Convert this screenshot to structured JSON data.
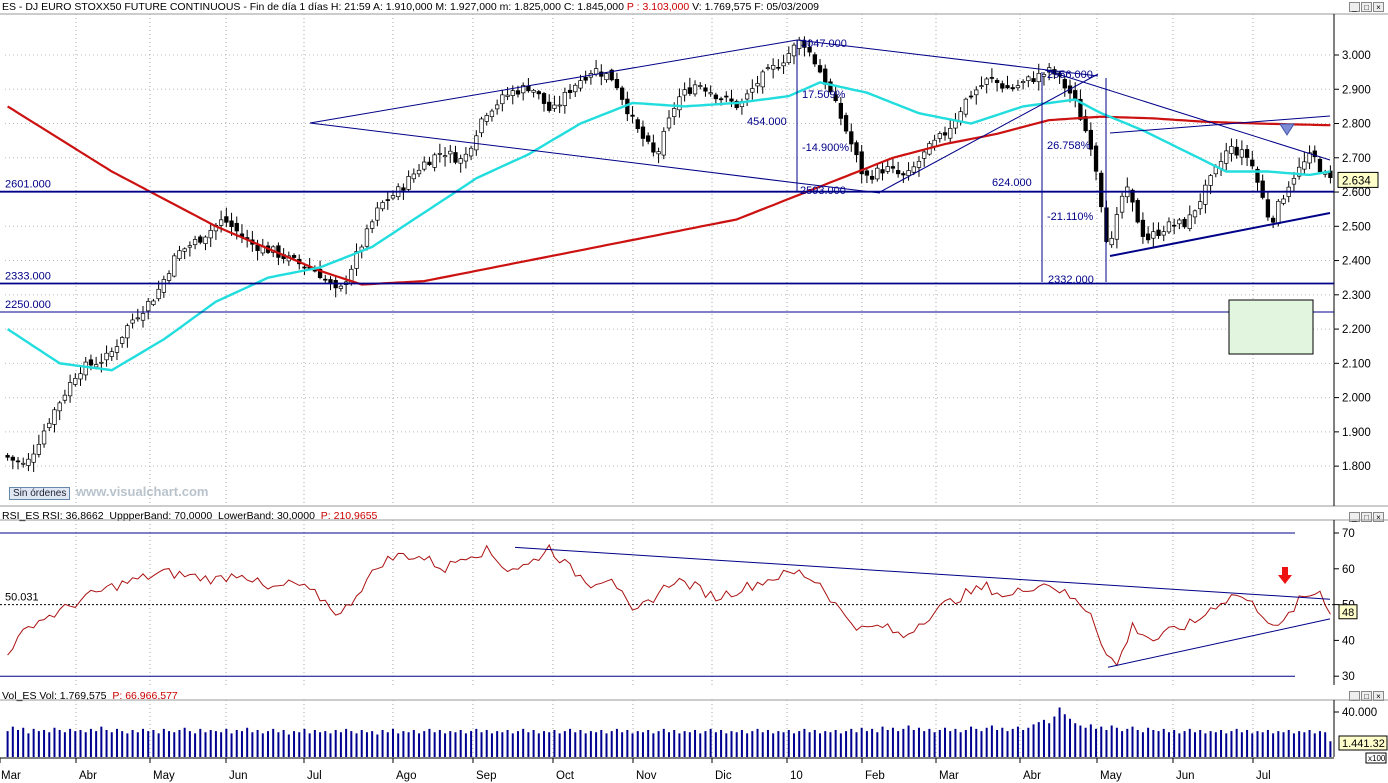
{
  "header": {
    "title": "ES - DJ EURO STOXX50 FUTURE CONTINUOUS - Fin de día 1 días",
    "h_label": "H: 21:59",
    "open_label": "A: 1.910,000",
    "high_label": "M: 1.927,000",
    "low_label": "m: 1.825,000",
    "close_label": "C: 1.845,000",
    "p_label": "P : 3.103,000",
    "volume_label": "V: 1.769,575",
    "date_label": "F: 05/03/2009"
  },
  "window_buttons": [
    "_",
    "□",
    "×"
  ],
  "rsi_header": {
    "rsi_name": "RSI_ES RSI: 36,8662",
    "upper": "UppperBand: 70,0000",
    "lower": "LowerBand: 30,0000",
    "p": "P: 210,9655"
  },
  "vol_header": {
    "name": "Vol_ES Vol: 1.769,575",
    "p": "P: 66.966,577"
  },
  "watermark": "www.visualchart.com",
  "sin_ordenes": "Sin órdenes",
  "colors": {
    "ma_long": "#cc1111",
    "ma_short": "#22dddd",
    "lines": "#000088",
    "rsi": "#aa1111",
    "box_fill": "#e2f6df",
    "price_tag": "#ffffcc"
  },
  "chart_data": [
    {
      "type": "candlestick",
      "title": "ES - DJ EURO STOXX50 FUTURE CONTINUOUS",
      "ylim": [
        1700,
        3100
      ],
      "y_ticks": [
        "3.000",
        "2.900",
        "2.800",
        "2.700",
        "2.600",
        "2.500",
        "2.400",
        "2.300",
        "2.200",
        "2.100",
        "2.000",
        "1.900",
        "1.800"
      ],
      "y_tick_values": [
        3000,
        2900,
        2800,
        2700,
        2600,
        2500,
        2400,
        2300,
        2200,
        2100,
        2000,
        1900,
        1800
      ],
      "x_month_labels": [
        "Mar",
        "Abr",
        "May",
        "Jun",
        "Jul",
        "Ago",
        "Sep",
        "Oct",
        "Nov",
        "Dic",
        "10",
        "Feb",
        "Mar",
        "Abr",
        "May",
        "Jun",
        "Jul"
      ],
      "last_price_label": "2.634",
      "last_price": 2634,
      "price_path": [
        [
          0,
          1830
        ],
        [
          4,
          1800
        ],
        [
          9,
          1950
        ],
        [
          14,
          2080
        ],
        [
          20,
          2120
        ],
        [
          24,
          2220
        ],
        [
          29,
          2300
        ],
        [
          33,
          2420
        ],
        [
          37,
          2460
        ],
        [
          42,
          2520
        ],
        [
          47,
          2450
        ],
        [
          51,
          2430
        ],
        [
          55,
          2400
        ],
        [
          60,
          2370
        ],
        [
          64,
          2300
        ],
        [
          68,
          2430
        ],
        [
          72,
          2560
        ],
        [
          76,
          2610
        ],
        [
          80,
          2680
        ],
        [
          84,
          2720
        ],
        [
          88,
          2690
        ],
        [
          92,
          2830
        ],
        [
          97,
          2890
        ],
        [
          101,
          2910
        ],
        [
          105,
          2830
        ],
        [
          109,
          2910
        ],
        [
          113,
          2960
        ],
        [
          117,
          2930
        ],
        [
          121,
          2790
        ],
        [
          125,
          2700
        ],
        [
          129,
          2870
        ],
        [
          133,
          2920
        ],
        [
          137,
          2880
        ],
        [
          141,
          2850
        ],
        [
          145,
          2930
        ],
        [
          149,
          2980
        ],
        [
          153,
          3047
        ],
        [
          157,
          2940
        ],
        [
          161,
          2800
        ],
        [
          165,
          2640
        ],
        [
          169,
          2670
        ],
        [
          173,
          2640
        ],
        [
          177,
          2720
        ],
        [
          181,
          2780
        ],
        [
          185,
          2880
        ],
        [
          189,
          2930
        ],
        [
          193,
          2900
        ],
        [
          197,
          2930
        ],
        [
          201,
          2955
        ],
        [
          205,
          2880
        ],
        [
          209,
          2720
        ],
        [
          212,
          2420
        ],
        [
          215,
          2620
        ],
        [
          219,
          2460
        ],
        [
          223,
          2500
        ],
        [
          227,
          2510
        ],
        [
          231,
          2620
        ],
        [
          235,
          2730
        ],
        [
          239,
          2700
        ],
        [
          243,
          2510
        ],
        [
          247,
          2640
        ],
        [
          251,
          2710
        ],
        [
          254,
          2634
        ]
      ],
      "ma_long_path": [
        [
          0,
          2850
        ],
        [
          20,
          2660
        ],
        [
          40,
          2500
        ],
        [
          60,
          2370
        ],
        [
          68,
          2330
        ],
        [
          80,
          2340
        ],
        [
          100,
          2400
        ],
        [
          120,
          2460
        ],
        [
          140,
          2520
        ],
        [
          160,
          2640
        ],
        [
          170,
          2700
        ],
        [
          180,
          2740
        ],
        [
          190,
          2770
        ],
        [
          200,
          2810
        ],
        [
          210,
          2820
        ],
        [
          220,
          2815
        ],
        [
          230,
          2805
        ],
        [
          240,
          2800
        ],
        [
          254,
          2795
        ]
      ],
      "ma_short_path": [
        [
          0,
          2200
        ],
        [
          10,
          2100
        ],
        [
          20,
          2080
        ],
        [
          30,
          2170
        ],
        [
          40,
          2280
        ],
        [
          50,
          2350
        ],
        [
          60,
          2380
        ],
        [
          70,
          2440
        ],
        [
          80,
          2540
        ],
        [
          90,
          2640
        ],
        [
          100,
          2710
        ],
        [
          110,
          2800
        ],
        [
          120,
          2860
        ],
        [
          130,
          2850
        ],
        [
          140,
          2860
        ],
        [
          150,
          2880
        ],
        [
          156,
          2920
        ],
        [
          165,
          2890
        ],
        [
          175,
          2830
        ],
        [
          185,
          2800
        ],
        [
          195,
          2850
        ],
        [
          205,
          2870
        ],
        [
          210,
          2830
        ],
        [
          218,
          2780
        ],
        [
          226,
          2720
        ],
        [
          234,
          2660
        ],
        [
          242,
          2660
        ],
        [
          250,
          2650
        ],
        [
          254,
          2660
        ]
      ],
      "h_levels": [
        {
          "label": "2601.000",
          "value": 2601
        },
        {
          "label": "2333.000",
          "value": 2333
        },
        {
          "label": "2250.000",
          "value": 2250
        }
      ],
      "annotations": [
        {
          "text": "3047.000"
        },
        {
          "text": "17.509%"
        },
        {
          "text": "454.000"
        },
        {
          "text": "-14.900%"
        },
        {
          "text": "2593.000"
        },
        {
          "text": "2956.000"
        },
        {
          "text": "26.758%"
        },
        {
          "text": "624.000"
        },
        {
          "text": "-21.110%"
        },
        {
          "text": "2332.000"
        }
      ]
    },
    {
      "type": "line",
      "title": "RSI_ES RSI",
      "ylim": [
        25,
        75
      ],
      "y_ticks": [
        "70",
        "60",
        "50",
        "40",
        "30"
      ],
      "y_tick_values": [
        70,
        60,
        50,
        40,
        30
      ],
      "upper_band": 70,
      "lower_band": 30,
      "level_label": "50.031",
      "level": 50,
      "last_value_label": "48",
      "series": [
        {
          "values": [
            [
              0,
              37
            ],
            [
              5,
              45
            ],
            [
              10,
              48
            ],
            [
              15,
              52
            ],
            [
              20,
              55
            ],
            [
              25,
              57
            ],
            [
              30,
              59
            ],
            [
              35,
              58
            ],
            [
              40,
              57
            ],
            [
              45,
              59
            ],
            [
              50,
              54
            ],
            [
              55,
              56
            ],
            [
              60,
              52
            ],
            [
              64,
              47
            ],
            [
              68,
              55
            ],
            [
              72,
              62
            ],
            [
              76,
              64
            ],
            [
              80,
              63
            ],
            [
              84,
              60
            ],
            [
              88,
              64
            ],
            [
              92,
              65
            ],
            [
              96,
              60
            ],
            [
              100,
              61
            ],
            [
              104,
              66
            ],
            [
              108,
              60
            ],
            [
              112,
              56
            ],
            [
              116,
              58
            ],
            [
              120,
              47
            ],
            [
              124,
              52
            ],
            [
              128,
              57
            ],
            [
              132,
              55
            ],
            [
              136,
              52
            ],
            [
              140,
              54
            ],
            [
              144,
              56
            ],
            [
              148,
              58
            ],
            [
              152,
              59
            ],
            [
              156,
              56
            ],
            [
              160,
              48
            ],
            [
              164,
              43
            ],
            [
              168,
              44
            ],
            [
              172,
              41
            ],
            [
              176,
              46
            ],
            [
              180,
              50
            ],
            [
              184,
              53
            ],
            [
              188,
              55
            ],
            [
              192,
              52
            ],
            [
              196,
              55
            ],
            [
              200,
              56
            ],
            [
              204,
              52
            ],
            [
              208,
              48
            ],
            [
              211,
              36
            ],
            [
              213,
              33
            ],
            [
              216,
              44
            ],
            [
              220,
              40
            ],
            [
              224,
              43
            ],
            [
              228,
              45
            ],
            [
              232,
              50
            ],
            [
              236,
              53
            ],
            [
              240,
              49
            ],
            [
              244,
              43
            ],
            [
              248,
              51
            ],
            [
              252,
              54
            ],
            [
              254,
              48
            ]
          ]
        }
      ]
    },
    {
      "type": "bar",
      "title": "Vol_ES Vol",
      "ylim": [
        0,
        48000
      ],
      "y_ticks": [
        "40.000"
      ],
      "y_tick_values": [
        40000
      ],
      "last_value_label": "1.441.32",
      "scale_label": "x100",
      "values": [
        23000,
        27000,
        24000,
        26000,
        21000,
        25000,
        23000,
        24000,
        22000,
        26000,
        24000,
        22000,
        25000,
        23000,
        24000,
        22000,
        25000,
        23000,
        27000,
        24000,
        22000,
        25000,
        23000,
        21000,
        24000,
        22000,
        25000,
        23000,
        24000,
        21000,
        25000,
        23000,
        22000,
        24000,
        26000,
        23000,
        21000,
        25000,
        22000,
        24000,
        23000,
        22000,
        25000,
        21000,
        24000,
        23000,
        26000,
        22000,
        24000,
        21000,
        23000,
        25000,
        22000,
        24000,
        20000,
        23000,
        22000,
        25000,
        21000,
        24000,
        22000,
        23000,
        21000,
        24000,
        22000,
        25000,
        23000,
        21000,
        24000,
        22000,
        23000,
        20000,
        24000,
        22000,
        25000,
        21000,
        23000,
        22000,
        24000,
        21000,
        23000,
        25000,
        22000,
        24000,
        21000,
        23000,
        22000,
        24000,
        21000,
        23000,
        25000,
        22000,
        24000,
        21000,
        23000,
        22000,
        24000,
        21000,
        23000,
        25000,
        22000,
        24000,
        21000,
        23000,
        22000,
        24000,
        21000,
        23000,
        25000,
        22000,
        24000,
        21000,
        23000,
        22000,
        24000,
        21000,
        23000,
        25000,
        22000,
        24000,
        21000,
        23000,
        22000,
        24000,
        21000,
        23000,
        25000,
        22000,
        24000,
        21000,
        23000,
        22000,
        24000,
        21000,
        23000,
        25000,
        22000,
        24000,
        21000,
        23000,
        22000,
        24000,
        21000,
        23000,
        25000,
        22000,
        24000,
        21000,
        23000,
        22000,
        24000,
        21000,
        23000,
        25000,
        22000,
        24000,
        21000,
        23000,
        22000,
        24000,
        21000,
        23000,
        25000,
        22000,
        26000,
        23000,
        25000,
        22000,
        27000,
        24000,
        26000,
        23000,
        25000,
        28000,
        24000,
        26000,
        23000,
        25000,
        22000,
        24000,
        26000,
        23000,
        25000,
        22000,
        24000,
        27000,
        25000,
        23000,
        26000,
        28000,
        24000,
        26000,
        23000,
        25000,
        27000,
        24000,
        26000,
        29000,
        31000,
        33000,
        30000,
        36000,
        44000,
        38000,
        34000,
        30000,
        28000,
        26000,
        29000,
        25000,
        27000,
        24000,
        28000,
        26000,
        23000,
        25000,
        27000,
        24000,
        22000,
        26000,
        24000,
        23000,
        25000,
        22000,
        24000,
        21000,
        23000,
        25000,
        22000,
        24000,
        21000,
        23000,
        22000,
        24000,
        21000,
        23000,
        25000,
        22000,
        24000,
        21000,
        23000,
        22000,
        24000,
        21000,
        23000,
        22000,
        24000,
        21000,
        23000,
        22000,
        24000,
        21000,
        23000,
        22000,
        14000
      ]
    }
  ]
}
